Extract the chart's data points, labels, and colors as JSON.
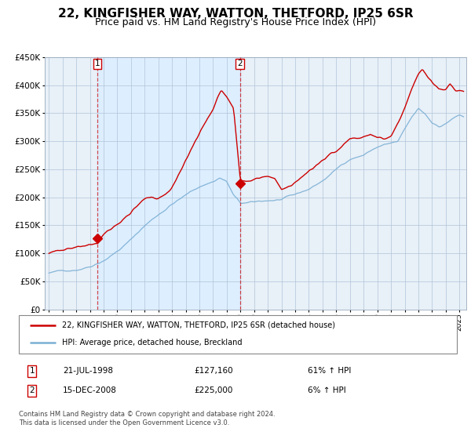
{
  "title": "22, KINGFISHER WAY, WATTON, THETFORD, IP25 6SR",
  "subtitle": "Price paid vs. HM Land Registry's House Price Index (HPI)",
  "legend_line1": "22, KINGFISHER WAY, WATTON, THETFORD, IP25 6SR (detached house)",
  "legend_line2": "HPI: Average price, detached house, Breckland",
  "purchase1_date": "21-JUL-1998",
  "purchase1_price": 127160,
  "purchase1_label": "61% ↑ HPI",
  "purchase2_date": "15-DEC-2008",
  "purchase2_price": 225000,
  "purchase2_label": "6% ↑ HPI",
  "purchase1_year": 1998.55,
  "purchase2_year": 2008.96,
  "footer": "Contains HM Land Registry data © Crown copyright and database right 2024.\nThis data is licensed under the Open Government Licence v3.0.",
  "ylim": [
    0,
    450000
  ],
  "xlim_start": 1994.7,
  "xlim_end": 2025.5,
  "red_color": "#cc0000",
  "blue_color": "#7aafd4",
  "shade_color": "#ddeeff",
  "background_color": "#e8f0f8",
  "grid_color": "#b0c4d8",
  "title_fontsize": 11,
  "subtitle_fontsize": 9
}
